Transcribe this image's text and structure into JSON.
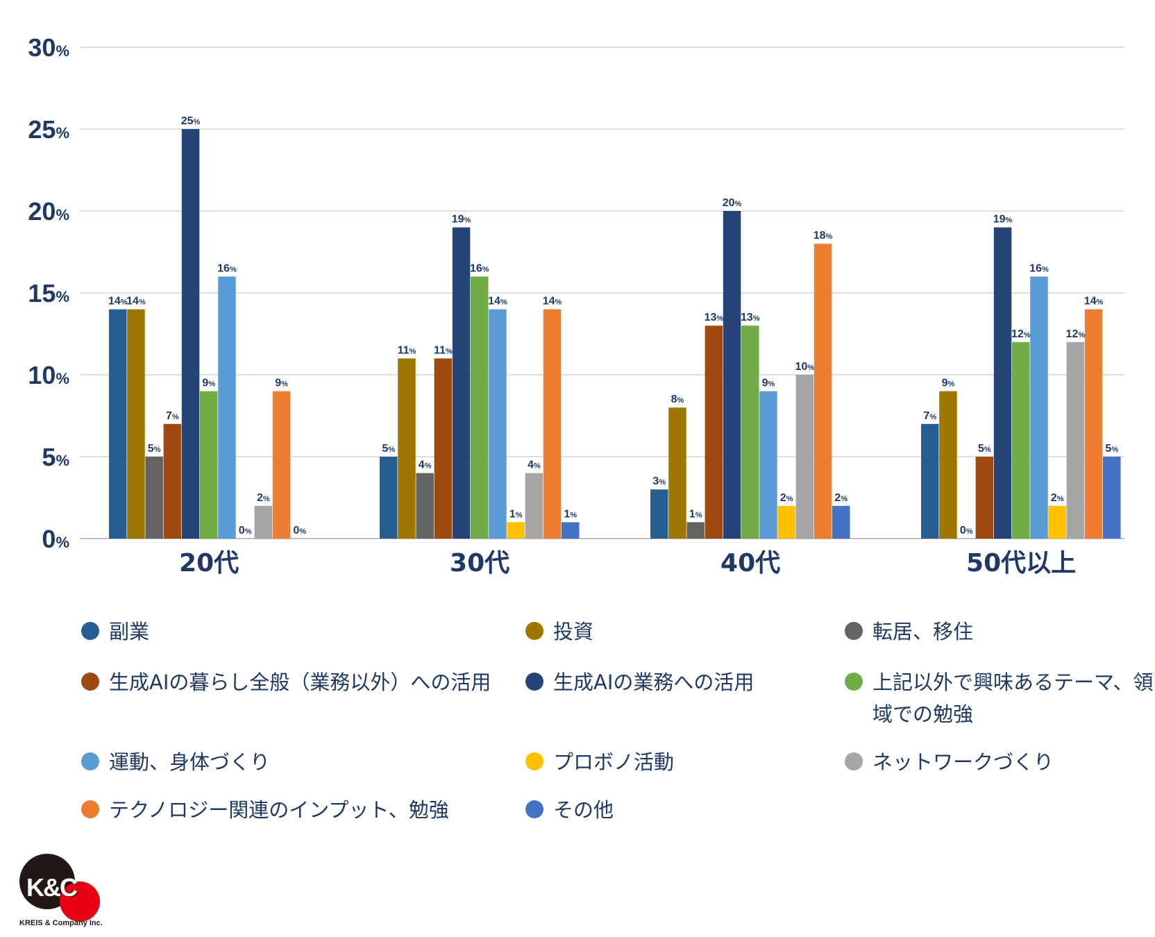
{
  "chart_data": {
    "type": "bar",
    "title": "",
    "xlabel": "",
    "ylabel": "",
    "ylim": [
      0,
      30
    ],
    "yticks": [
      0,
      5,
      10,
      15,
      20,
      25,
      30
    ],
    "ytick_unit": "%",
    "value_unit": "%",
    "grid": true,
    "legend_position": "bottom",
    "categories": [
      "20代",
      "30代",
      "40代",
      "50代以上"
    ],
    "series": [
      {
        "name": "副業",
        "color": "#255e91",
        "values": [
          14,
          5,
          3,
          7
        ]
      },
      {
        "name": "投資",
        "color": "#9e7700",
        "values": [
          14,
          11,
          8,
          9
        ]
      },
      {
        "name": "転居、移住",
        "color": "#636363",
        "values": [
          5,
          4,
          1,
          0
        ]
      },
      {
        "name": "生成AIの暮らし全般（業務以外）への活用",
        "color": "#9e4a10",
        "values": [
          7,
          11,
          13,
          5
        ]
      },
      {
        "name": "生成AIの業務への活用",
        "color": "#264478",
        "values": [
          25,
          19,
          20,
          19
        ]
      },
      {
        "name": "上記以外で興味あるテーマ、領域での勉強",
        "color": "#70ad47",
        "values": [
          9,
          16,
          13,
          12
        ]
      },
      {
        "name": "運動、身体づくり",
        "color": "#5b9bd5",
        "values": [
          16,
          14,
          9,
          16
        ]
      },
      {
        "name": "プロボノ活動",
        "color": "#ffc000",
        "values": [
          0,
          1,
          2,
          2
        ]
      },
      {
        "name": "ネットワークづくり",
        "color": "#a5a5a5",
        "values": [
          2,
          4,
          10,
          12
        ]
      },
      {
        "name": "テクノロジー関連のインプット、勉強",
        "color": "#ed7d31",
        "values": [
          9,
          14,
          18,
          14
        ]
      },
      {
        "name": "その他",
        "color": "#4472c4",
        "values": [
          0,
          1,
          2,
          5
        ]
      }
    ]
  },
  "logo": {
    "mark": "K&C",
    "company": "KREIS & Company Inc."
  }
}
